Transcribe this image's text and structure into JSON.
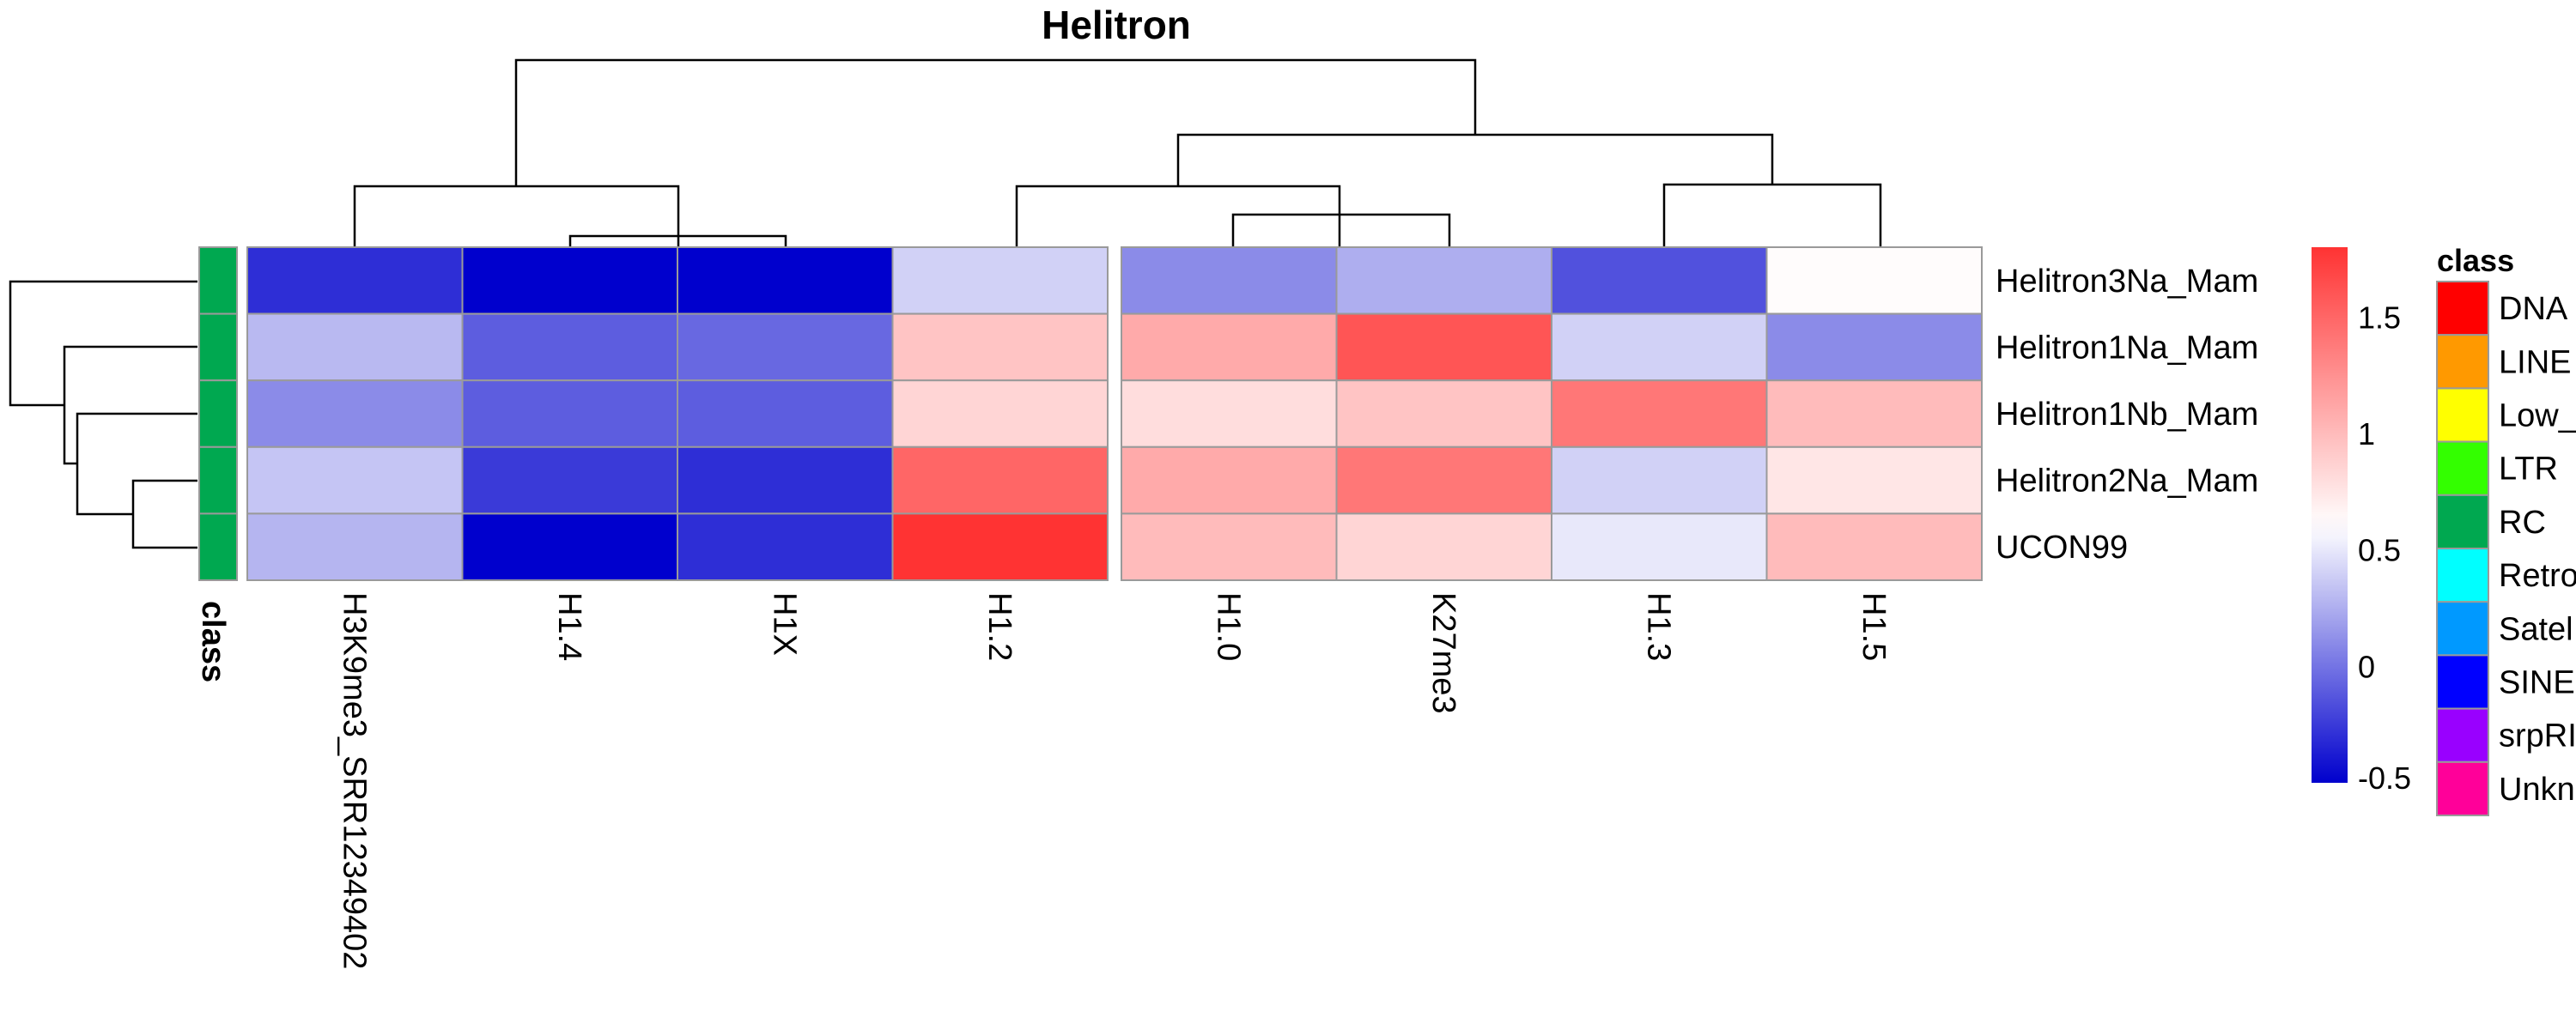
{
  "chart_data": {
    "type": "heatmap",
    "title": "Helitron",
    "rows": [
      "Helitron3Na_Mam",
      "Helitron1Na_Mam",
      "Helitron1Nb_Mam",
      "Helitron2Na_Mam",
      "UCON99"
    ],
    "columns": [
      "H3K9me3_SRR12349402",
      "H1.4",
      "H1X",
      "H1.2",
      "H1.0",
      "K27me3",
      "H1.3",
      "H1.5"
    ],
    "values": [
      [
        -0.3,
        -0.5,
        -0.5,
        0.4,
        0.1,
        0.25,
        -0.15,
        0.62
      ],
      [
        0.3,
        -0.1,
        -0.05,
        0.95,
        1.1,
        1.6,
        0.4,
        0.1
      ],
      [
        0.1,
        -0.1,
        -0.1,
        0.85,
        0.8,
        0.95,
        1.4,
        1.0
      ],
      [
        0.35,
        -0.25,
        -0.3,
        1.5,
        1.1,
        1.4,
        0.4,
        0.75
      ],
      [
        0.28,
        -0.5,
        -0.3,
        1.8,
        1.0,
        0.85,
        0.5,
        1.0
      ]
    ],
    "row_annotation": {
      "label": "class",
      "values": [
        "RC",
        "RC",
        "RC",
        "RC",
        "RC"
      ]
    },
    "colorbar": {
      "min": -0.5,
      "max": 1.8,
      "ticks": [
        "1.5",
        "1",
        "0.5",
        "0",
        "-0.5"
      ],
      "tick_values": [
        1.5,
        1.0,
        0.5,
        0.0,
        -0.5
      ],
      "low_color": "#0000CD",
      "mid_color": "#FFFFFF",
      "high_color": "#FF3333",
      "mid_value": 0.6
    },
    "column_gap_after": 3,
    "legend": {
      "title": "class",
      "items": [
        {
          "label": "DNA",
          "color": "#FF0000"
        },
        {
          "label": "LINE",
          "color": "#FF9900"
        },
        {
          "label": "Low_",
          "color": "#FFFF00"
        },
        {
          "label": "LTR",
          "color": "#33FF00"
        },
        {
          "label": "RC",
          "color": "#00A850"
        },
        {
          "label": "Retro",
          "color": "#00FFFF"
        },
        {
          "label": "Satel",
          "color": "#0099FF"
        },
        {
          "label": "SINE",
          "color": "#0000FF"
        },
        {
          "label": "srpRI",
          "color": "#9900FF"
        },
        {
          "label": "Unkn",
          "color": "#FF0099"
        }
      ]
    }
  }
}
